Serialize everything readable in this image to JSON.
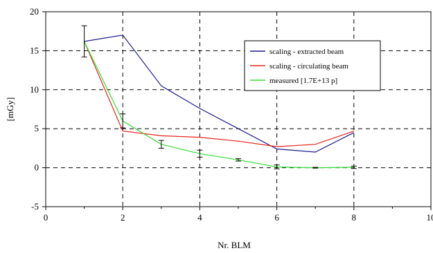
{
  "chart_data": {
    "type": "line",
    "title": "",
    "xlabel": "Nr. BLM",
    "ylabel": "[mGy]",
    "xlim": [
      0,
      10
    ],
    "ylim": [
      -5,
      20
    ],
    "x_ticks": [
      "0",
      "2",
      "4",
      "6",
      "8",
      "10"
    ],
    "y_ticks": [
      "-5",
      "0",
      "5",
      "10",
      "15",
      "20"
    ],
    "grid": "dashed",
    "legend_position": "top-right",
    "series": [
      {
        "name": "scaling - extracted beam",
        "color": "#1a1a8c",
        "x": [
          1,
          2,
          3,
          4,
          5,
          6,
          7,
          8
        ],
        "y": [
          16.2,
          17.0,
          10.5,
          7.6,
          5.0,
          2.4,
          2.0,
          4.5
        ]
      },
      {
        "name": "scaling - circulating beam",
        "color": "#e8221b",
        "x": [
          1,
          2,
          3,
          4,
          5,
          6,
          7,
          8
        ],
        "y": [
          16.2,
          4.7,
          4.1,
          3.9,
          3.4,
          2.7,
          3.0,
          4.7
        ]
      },
      {
        "name": "measured [1.7E+13 p]",
        "color": "#33dd33",
        "x": [
          1,
          2,
          3,
          4,
          5,
          6,
          7,
          8
        ],
        "y": [
          16.2,
          6.0,
          3.0,
          1.8,
          1.0,
          0.1,
          0.0,
          0.05
        ],
        "error": [
          2.0,
          0.9,
          0.5,
          0.45,
          0.15,
          0.25,
          0.05,
          0.15
        ]
      }
    ]
  }
}
